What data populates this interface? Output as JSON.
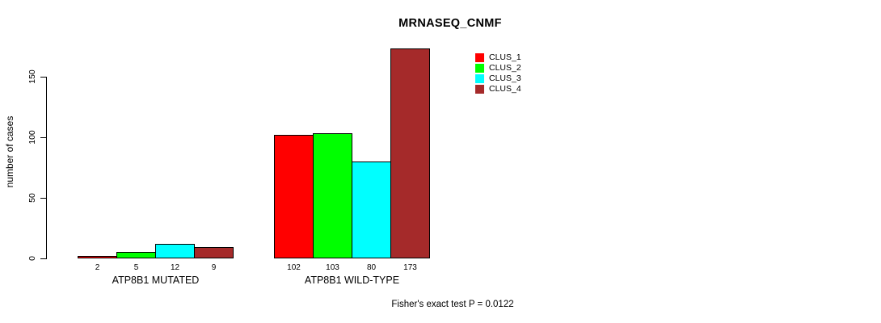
{
  "title": "MRNASEQ_CNMF",
  "footer": "Fisher's exact test P = 0.0122",
  "chart_data": {
    "type": "bar",
    "title": "MRNASEQ_CNMF",
    "xlabel": "",
    "ylabel": "number of cases",
    "categories": [
      "ATP8B1 MUTATED",
      "ATP8B1 WILD-TYPE"
    ],
    "series": [
      {
        "name": "CLUS_1",
        "color": "#ff0000",
        "values": [
          2,
          102
        ]
      },
      {
        "name": "CLUS_2",
        "color": "#00ff00",
        "values": [
          5,
          103
        ]
      },
      {
        "name": "CLUS_3",
        "color": "#00ffff",
        "values": [
          12,
          80
        ]
      },
      {
        "name": "CLUS_4",
        "color": "#a52a2a",
        "values": [
          9,
          173
        ]
      }
    ],
    "bar_value_labels": [
      [
        "2",
        "5",
        "12",
        "9"
      ],
      [
        "102",
        "103",
        "80",
        "173"
      ]
    ],
    "yticks": [
      0,
      50,
      100,
      150
    ],
    "ylim": [
      0,
      173
    ],
    "grid": false,
    "legend_position": "top-right",
    "annotation": "Fisher's exact test P = 0.0122",
    "bar_border_color": "#000000",
    "background_color": "#ffffff"
  }
}
